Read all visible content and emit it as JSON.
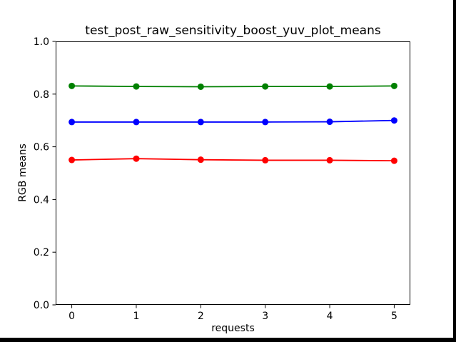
{
  "window": {
    "background_color": "#000000",
    "figure_background_color": "#ffffff"
  },
  "chart_data": {
    "type": "line",
    "title": "test_post_raw_sensitivity_boost_yuv_plot_means",
    "xlabel": "requests",
    "ylabel": "RGB means",
    "x": [
      0,
      1,
      2,
      3,
      4,
      5
    ],
    "xlim": [
      -0.25,
      5.25
    ],
    "ylim": [
      0,
      1
    ],
    "xticks": [
      "0",
      "1",
      "2",
      "3",
      "4",
      "5"
    ],
    "xtick_values": [
      0,
      1,
      2,
      3,
      4,
      5
    ],
    "yticks": [
      "0.0",
      "0.2",
      "0.4",
      "0.6",
      "0.8",
      "1.0"
    ],
    "ytick_values": [
      0.0,
      0.2,
      0.4,
      0.6,
      0.8,
      1.0
    ],
    "grid": false,
    "legend": "none",
    "marker": "circle",
    "line_width": 1.8,
    "marker_radius": 4.5,
    "axis_color": "#000000",
    "series": [
      {
        "name": "green",
        "color": "#008000",
        "values": [
          0.831,
          0.829,
          0.828,
          0.829,
          0.829,
          0.831
        ]
      },
      {
        "name": "blue",
        "color": "#0000ff",
        "values": [
          0.694,
          0.694,
          0.694,
          0.694,
          0.695,
          0.7
        ]
      },
      {
        "name": "red",
        "color": "#ff0000",
        "values": [
          0.55,
          0.555,
          0.551,
          0.549,
          0.549,
          0.547
        ]
      }
    ]
  }
}
